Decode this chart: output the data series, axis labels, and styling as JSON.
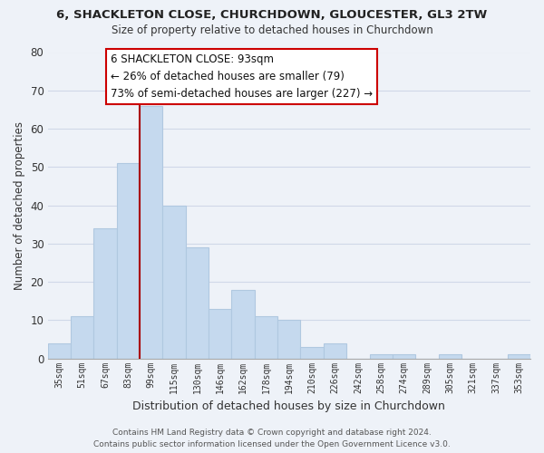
{
  "title1": "6, SHACKLETON CLOSE, CHURCHDOWN, GLOUCESTER, GL3 2TW",
  "title2": "Size of property relative to detached houses in Churchdown",
  "xlabel": "Distribution of detached houses by size in Churchdown",
  "ylabel": "Number of detached properties",
  "bin_labels": [
    "35sqm",
    "51sqm",
    "67sqm",
    "83sqm",
    "99sqm",
    "115sqm",
    "130sqm",
    "146sqm",
    "162sqm",
    "178sqm",
    "194sqm",
    "210sqm",
    "226sqm",
    "242sqm",
    "258sqm",
    "274sqm",
    "289sqm",
    "305sqm",
    "321sqm",
    "337sqm",
    "353sqm"
  ],
  "bar_values": [
    4,
    11,
    34,
    51,
    66,
    40,
    29,
    13,
    18,
    11,
    10,
    3,
    4,
    0,
    1,
    1,
    0,
    1,
    0,
    0,
    1
  ],
  "bar_color": "#c5d9ee",
  "bar_edge_color": "#b0c8e0",
  "grid_color": "#d0d8e8",
  "background_color": "#eef2f8",
  "property_line_x": 3.5,
  "property_line_color": "#aa0000",
  "annotation_line1": "6 SHACKLETON CLOSE: 93sqm",
  "annotation_line2": "← 26% of detached houses are smaller (79)",
  "annotation_line3": "73% of semi-detached houses are larger (227) →",
  "annotation_box_color": "#ffffff",
  "annotation_box_edge_color": "#cc0000",
  "footer1": "Contains HM Land Registry data © Crown copyright and database right 2024.",
  "footer2": "Contains public sector information licensed under the Open Government Licence v3.0.",
  "ylim": [
    0,
    80
  ],
  "yticks": [
    0,
    10,
    20,
    30,
    40,
    50,
    60,
    70,
    80
  ]
}
